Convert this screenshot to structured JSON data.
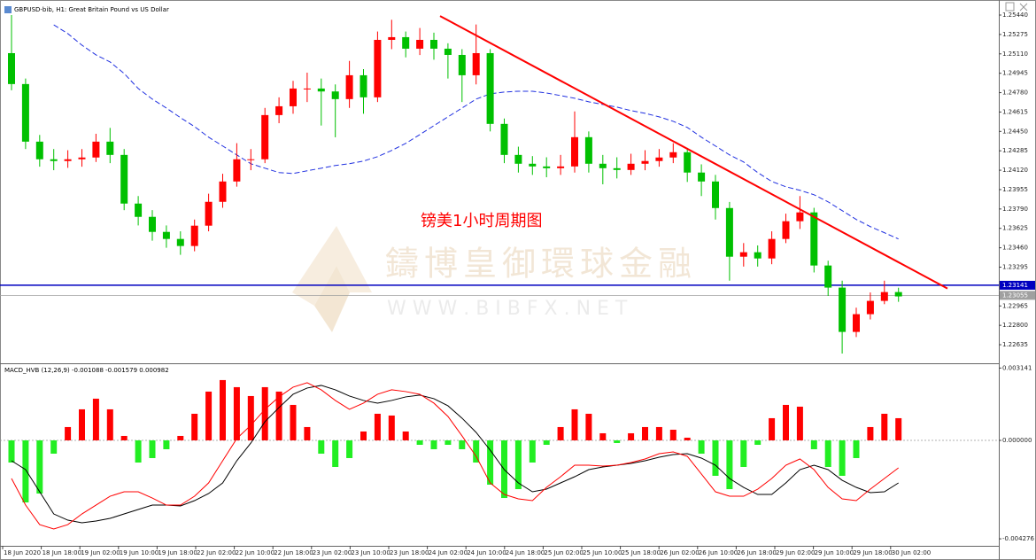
{
  "chart_data": [
    {
      "type": "candlestick",
      "title": "GBPUSD-bib, H1: Great Britain Pound vs US Dollar",
      "annotation": "镑美1小时周期图",
      "watermark": [
        "鑄博皇御環球金融",
        "W W W . B I B F X . N E T"
      ],
      "up_color": "#ff0000",
      "down_color": "#00c000",
      "open": [
        1.25116,
        1.24853,
        1.24363,
        1.24213,
        1.24198,
        1.24213,
        1.24228,
        1.24363,
        1.2425,
        1.23836,
        1.23723,
        1.23595,
        1.23535,
        1.23475,
        1.23648,
        1.23851,
        1.24024,
        1.24213,
        1.24213,
        1.24589,
        1.24664,
        1.24815,
        1.24815,
        1.2479,
        1.24725,
        1.24928,
        1.2474,
        1.25229,
        1.25252,
        1.25154,
        1.25229,
        1.25154,
        1.25101,
        1.24928,
        1.25116,
        1.24514,
        1.2425,
        1.24175,
        1.24152,
        1.24137,
        1.24152,
        1.24401,
        1.24175,
        1.24137,
        1.24122,
        1.24175,
        1.24198,
        1.24228,
        1.24273,
        1.241,
        1.24024,
        1.23798,
        1.23384,
        1.23422,
        1.23369,
        1.23535,
        1.23686,
        1.23761,
        1.23309,
        1.23121,
        1.22744,
        1.22895,
        1.23008,
        1.23083
      ],
      "high": [
        1.2544,
        1.249,
        1.2442,
        1.243,
        1.2429,
        1.243,
        1.2443,
        1.2448,
        1.243,
        1.239,
        1.2378,
        1.2365,
        1.236,
        1.237,
        1.2392,
        1.2409,
        1.2435,
        1.243,
        1.2465,
        1.2474,
        1.2488,
        1.2495,
        1.249,
        1.2485,
        1.2505,
        1.2498,
        1.253,
        1.254,
        1.253,
        1.2533,
        1.2529,
        1.252,
        1.2515,
        1.2536,
        1.2515,
        1.2456,
        1.2432,
        1.2424,
        1.2423,
        1.2425,
        1.2462,
        1.2445,
        1.2425,
        1.2423,
        1.2426,
        1.2429,
        1.243,
        1.2435,
        1.2431,
        1.2417,
        1.2408,
        1.2385,
        1.235,
        1.2348,
        1.236,
        1.2375,
        1.239,
        1.238,
        1.2335,
        1.2318,
        1.2295,
        1.2308,
        1.2318,
        1.2312
      ],
      "low": [
        1.248,
        1.243,
        1.2415,
        1.2412,
        1.2414,
        1.2415,
        1.2419,
        1.2418,
        1.2378,
        1.2365,
        1.2352,
        1.2346,
        1.234,
        1.2343,
        1.236,
        1.238,
        1.2398,
        1.2412,
        1.2418,
        1.2452,
        1.246,
        1.247,
        1.245,
        1.244,
        1.2465,
        1.246,
        1.247,
        1.2515,
        1.2508,
        1.251,
        1.2506,
        1.249,
        1.247,
        1.2485,
        1.2445,
        1.2418,
        1.241,
        1.2408,
        1.2406,
        1.2408,
        1.241,
        1.241,
        1.24,
        1.2405,
        1.2408,
        1.2412,
        1.2415,
        1.2418,
        1.2402,
        1.239,
        1.237,
        1.2318,
        1.233,
        1.233,
        1.2332,
        1.235,
        1.2362,
        1.2325,
        1.2305,
        1.2256,
        1.227,
        1.2285,
        1.2298,
        1.23
      ],
      "close": [
        1.24853,
        1.24363,
        1.24213,
        1.24198,
        1.24213,
        1.24228,
        1.24363,
        1.2425,
        1.23836,
        1.23723,
        1.23595,
        1.23535,
        1.23475,
        1.23648,
        1.23851,
        1.24024,
        1.24213,
        1.24213,
        1.24589,
        1.24664,
        1.24815,
        1.24815,
        1.2479,
        1.24725,
        1.24928,
        1.2474,
        1.25229,
        1.25252,
        1.25154,
        1.25229,
        1.25154,
        1.25101,
        1.24928,
        1.25116,
        1.24514,
        1.2425,
        1.24175,
        1.24152,
        1.24137,
        1.24152,
        1.24401,
        1.24175,
        1.24137,
        1.24122,
        1.24175,
        1.24198,
        1.24228,
        1.24273,
        1.241,
        1.24024,
        1.23798,
        1.23384,
        1.23422,
        1.23369,
        1.23535,
        1.23686,
        1.23761,
        1.23309,
        1.23121,
        1.22744,
        1.22895,
        1.23008,
        1.23083,
        1.23046
      ],
      "ma": {
        "color": "#2030e0",
        "values": [
          null,
          null,
          null,
          1.25357,
          1.25282,
          1.25184,
          1.25101,
          1.25041,
          1.24943,
          1.24815,
          1.24725,
          1.24649,
          1.24567,
          1.24491,
          1.24401,
          1.24326,
          1.2425,
          1.24175,
          1.24137,
          1.241,
          1.24092,
          1.24115,
          1.24137,
          1.2416,
          1.24175,
          1.24198,
          1.24235,
          1.24288,
          1.24348,
          1.24423,
          1.24499,
          1.24574,
          1.24649,
          1.24725,
          1.2477,
          1.24785,
          1.24792,
          1.24792,
          1.24777,
          1.24755,
          1.24732,
          1.24702,
          1.24679,
          1.24657,
          1.24627,
          1.24604,
          1.24574,
          1.24536,
          1.24484,
          1.24401,
          1.24326,
          1.2425,
          1.2419,
          1.241,
          1.24024,
          1.23979,
          1.23949,
          1.23911,
          1.23851,
          1.23776,
          1.23701,
          1.2364,
          1.23588,
          1.23535
        ]
      },
      "trendline": {
        "color": "#ff0000",
        "start": 1.25432,
        "end": 1.23113
      },
      "hline": {
        "color": "#0000c0",
        "value": 1.23141,
        "label": "1.23141"
      },
      "last_price": {
        "color": "#a0a0a0",
        "value": 1.23055,
        "label": "1.23055"
      },
      "ylim": [
        1.22477,
        1.25523
      ],
      "yticks": [
        {
          "value": 1.2544,
          "label": "1.25440"
        },
        {
          "value": 1.25275,
          "label": "1.25275"
        },
        {
          "value": 1.2511,
          "label": "1.25110"
        },
        {
          "value": 1.24945,
          "label": "1.24945"
        },
        {
          "value": 1.2478,
          "label": "1.24780"
        },
        {
          "value": 1.24615,
          "label": "1.24615"
        },
        {
          "value": 1.2445,
          "label": "1.24450"
        },
        {
          "value": 1.24285,
          "label": "1.24285"
        },
        {
          "value": 1.2412,
          "label": "1.24120"
        },
        {
          "value": 1.23955,
          "label": "1.23955"
        },
        {
          "value": 1.2379,
          "label": "1.23790"
        },
        {
          "value": 1.23625,
          "label": "1.23625"
        },
        {
          "value": 1.2346,
          "label": "1.23460"
        },
        {
          "value": 1.23295,
          "label": "1.23295"
        },
        {
          "value": 1.22965,
          "label": "1.22965"
        },
        {
          "value": 1.228,
          "label": "1.22800"
        },
        {
          "value": 1.22635,
          "label": "1.22635"
        }
      ]
    },
    {
      "type": "macd",
      "title": "MACD_HVB (12,26,9) -0.001088 -0.001579 0.000982",
      "histogram": {
        "up_color": "#ff0000",
        "down_color": "#22ee22",
        "values": [
          -0.000963,
          -0.002695,
          -0.00231,
          -0.000578,
          0.000578,
          0.001348,
          0.00181,
          0.001348,
          0.000193,
          -0.000963,
          -0.00077,
          -0.000385,
          0.000193,
          0.001155,
          0.002118,
          0.002618,
          0.00231,
          0.001925,
          0.00231,
          0.002118,
          0.00154,
          0.000578,
          -0.000578,
          -0.001155,
          -0.00077,
          0.000385,
          0.001155,
          0.001078,
          0.000385,
          -0.000193,
          -0.000385,
          -0.000193,
          -0.000385,
          -0.000963,
          -0.001925,
          -0.002503,
          -0.002118,
          -0.000963,
          -0.000193,
          0.000578,
          0.001348,
          0.001155,
          0.000308,
          -0.000116,
          0.000308,
          0.000578,
          0.000578,
          0.000462,
          0.000116,
          -0.000578,
          -0.00154,
          -0.002118,
          -0.001155,
          -0.000193,
          0.000963,
          0.00154,
          0.001463,
          -0.000385,
          -0.001155,
          -0.00154,
          -0.00077,
          0.000578,
          0.001155,
          0.000963
        ]
      },
      "series": [
        {
          "color": "#000000",
          "values": [
            -0.000886,
            -0.001271,
            -0.002233,
            -0.003196,
            -0.003465,
            -0.003581,
            -0.003504,
            -0.003388,
            -0.003196,
            -0.003003,
            -0.002811,
            -0.002811,
            -0.002849,
            -0.002618,
            -0.00231,
            -0.001848,
            -0.000886,
            -0.000116,
            0.000809,
            0.001425,
            0.002002,
            0.002272,
            0.002387,
            0.002195,
            0.001925,
            0.001733,
            0.001617,
            0.001733,
            0.001887,
            0.001964,
            0.00181,
            0.001502,
            0.000963,
            0.000347,
            -0.000424,
            -0.001271,
            -0.001848,
            -0.002233,
            -0.002118,
            -0.001848,
            -0.001579,
            -0.001271,
            -0.001155,
            -0.001078,
            -0.001001,
            -0.000886,
            -0.000732,
            -0.000616,
            -0.000578,
            -0.00077,
            -0.001078,
            -0.001656,
            -0.002041,
            -0.002349,
            -0.002349,
            -0.001848,
            -0.001271,
            -0.001078,
            -0.001271,
            -0.001733,
            -0.002041,
            -0.002272,
            -0.002233,
            -0.001848
          ]
        },
        {
          "color": "#ff0000",
          "values": [
            -0.001656,
            -0.002811,
            -0.003658,
            -0.00385,
            -0.003658,
            -0.003196,
            -0.002811,
            -0.002426,
            -0.002233,
            -0.002233,
            -0.002503,
            -0.002811,
            -0.002811,
            -0.002426,
            -0.001848,
            -0.000886,
            7.7e-05,
            0.000655,
            0.001348,
            0.001887,
            0.00231,
            0.002503,
            0.002195,
            0.001733,
            0.001348,
            0.001617,
            0.002002,
            0.002195,
            0.002118,
            0.002002,
            0.001617,
            0.00104,
            0.000193,
            -0.000693,
            -0.001848,
            -0.002349,
            -0.002541,
            -0.002618,
            -0.002041,
            -0.001579,
            -0.001078,
            -0.001078,
            -0.001117,
            -0.001078,
            -0.000963,
            -0.000809,
            -0.000578,
            -0.000501,
            -0.000693,
            -0.001463,
            -0.002233,
            -0.002426,
            -0.002426,
            -0.002118,
            -0.001656,
            -0.001078,
            -0.000809,
            -0.001271,
            -0.002041,
            -0.002541,
            -0.002618,
            -0.002118,
            -0.001656,
            -0.001194
          ]
        }
      ],
      "ylim": [
        -0.00458,
        0.00327
      ],
      "yticks": [
        {
          "value": 0.003141,
          "label": "0.003141"
        },
        {
          "value": 0,
          "label": "0.000000"
        },
        {
          "value": -0.004276,
          "label": "-0.004276"
        }
      ],
      "x_labels": [
        "18 Jun 2020",
        "18 Jun 18:00",
        "19 Jun 02:00",
        "19 Jun 10:00",
        "19 Jun 18:00",
        "22 Jun 02:00",
        "22 Jun 10:00",
        "22 Jun 18:00",
        "23 Jun 02:00",
        "23 Jun 10:00",
        "23 Jun 18:00",
        "24 Jun 02:00",
        "24 Jun 10:00",
        "24 Jun 18:00",
        "25 Jun 02:00",
        "25 Jun 10:00",
        "25 Jun 18:00",
        "26 Jun 02:00",
        "26 Jun 10:00",
        "26 Jun 18:00",
        "29 Jun 02:00",
        "29 Jun 10:00",
        "29 Jun 18:00",
        "30 Jun 02:00"
      ]
    }
  ]
}
